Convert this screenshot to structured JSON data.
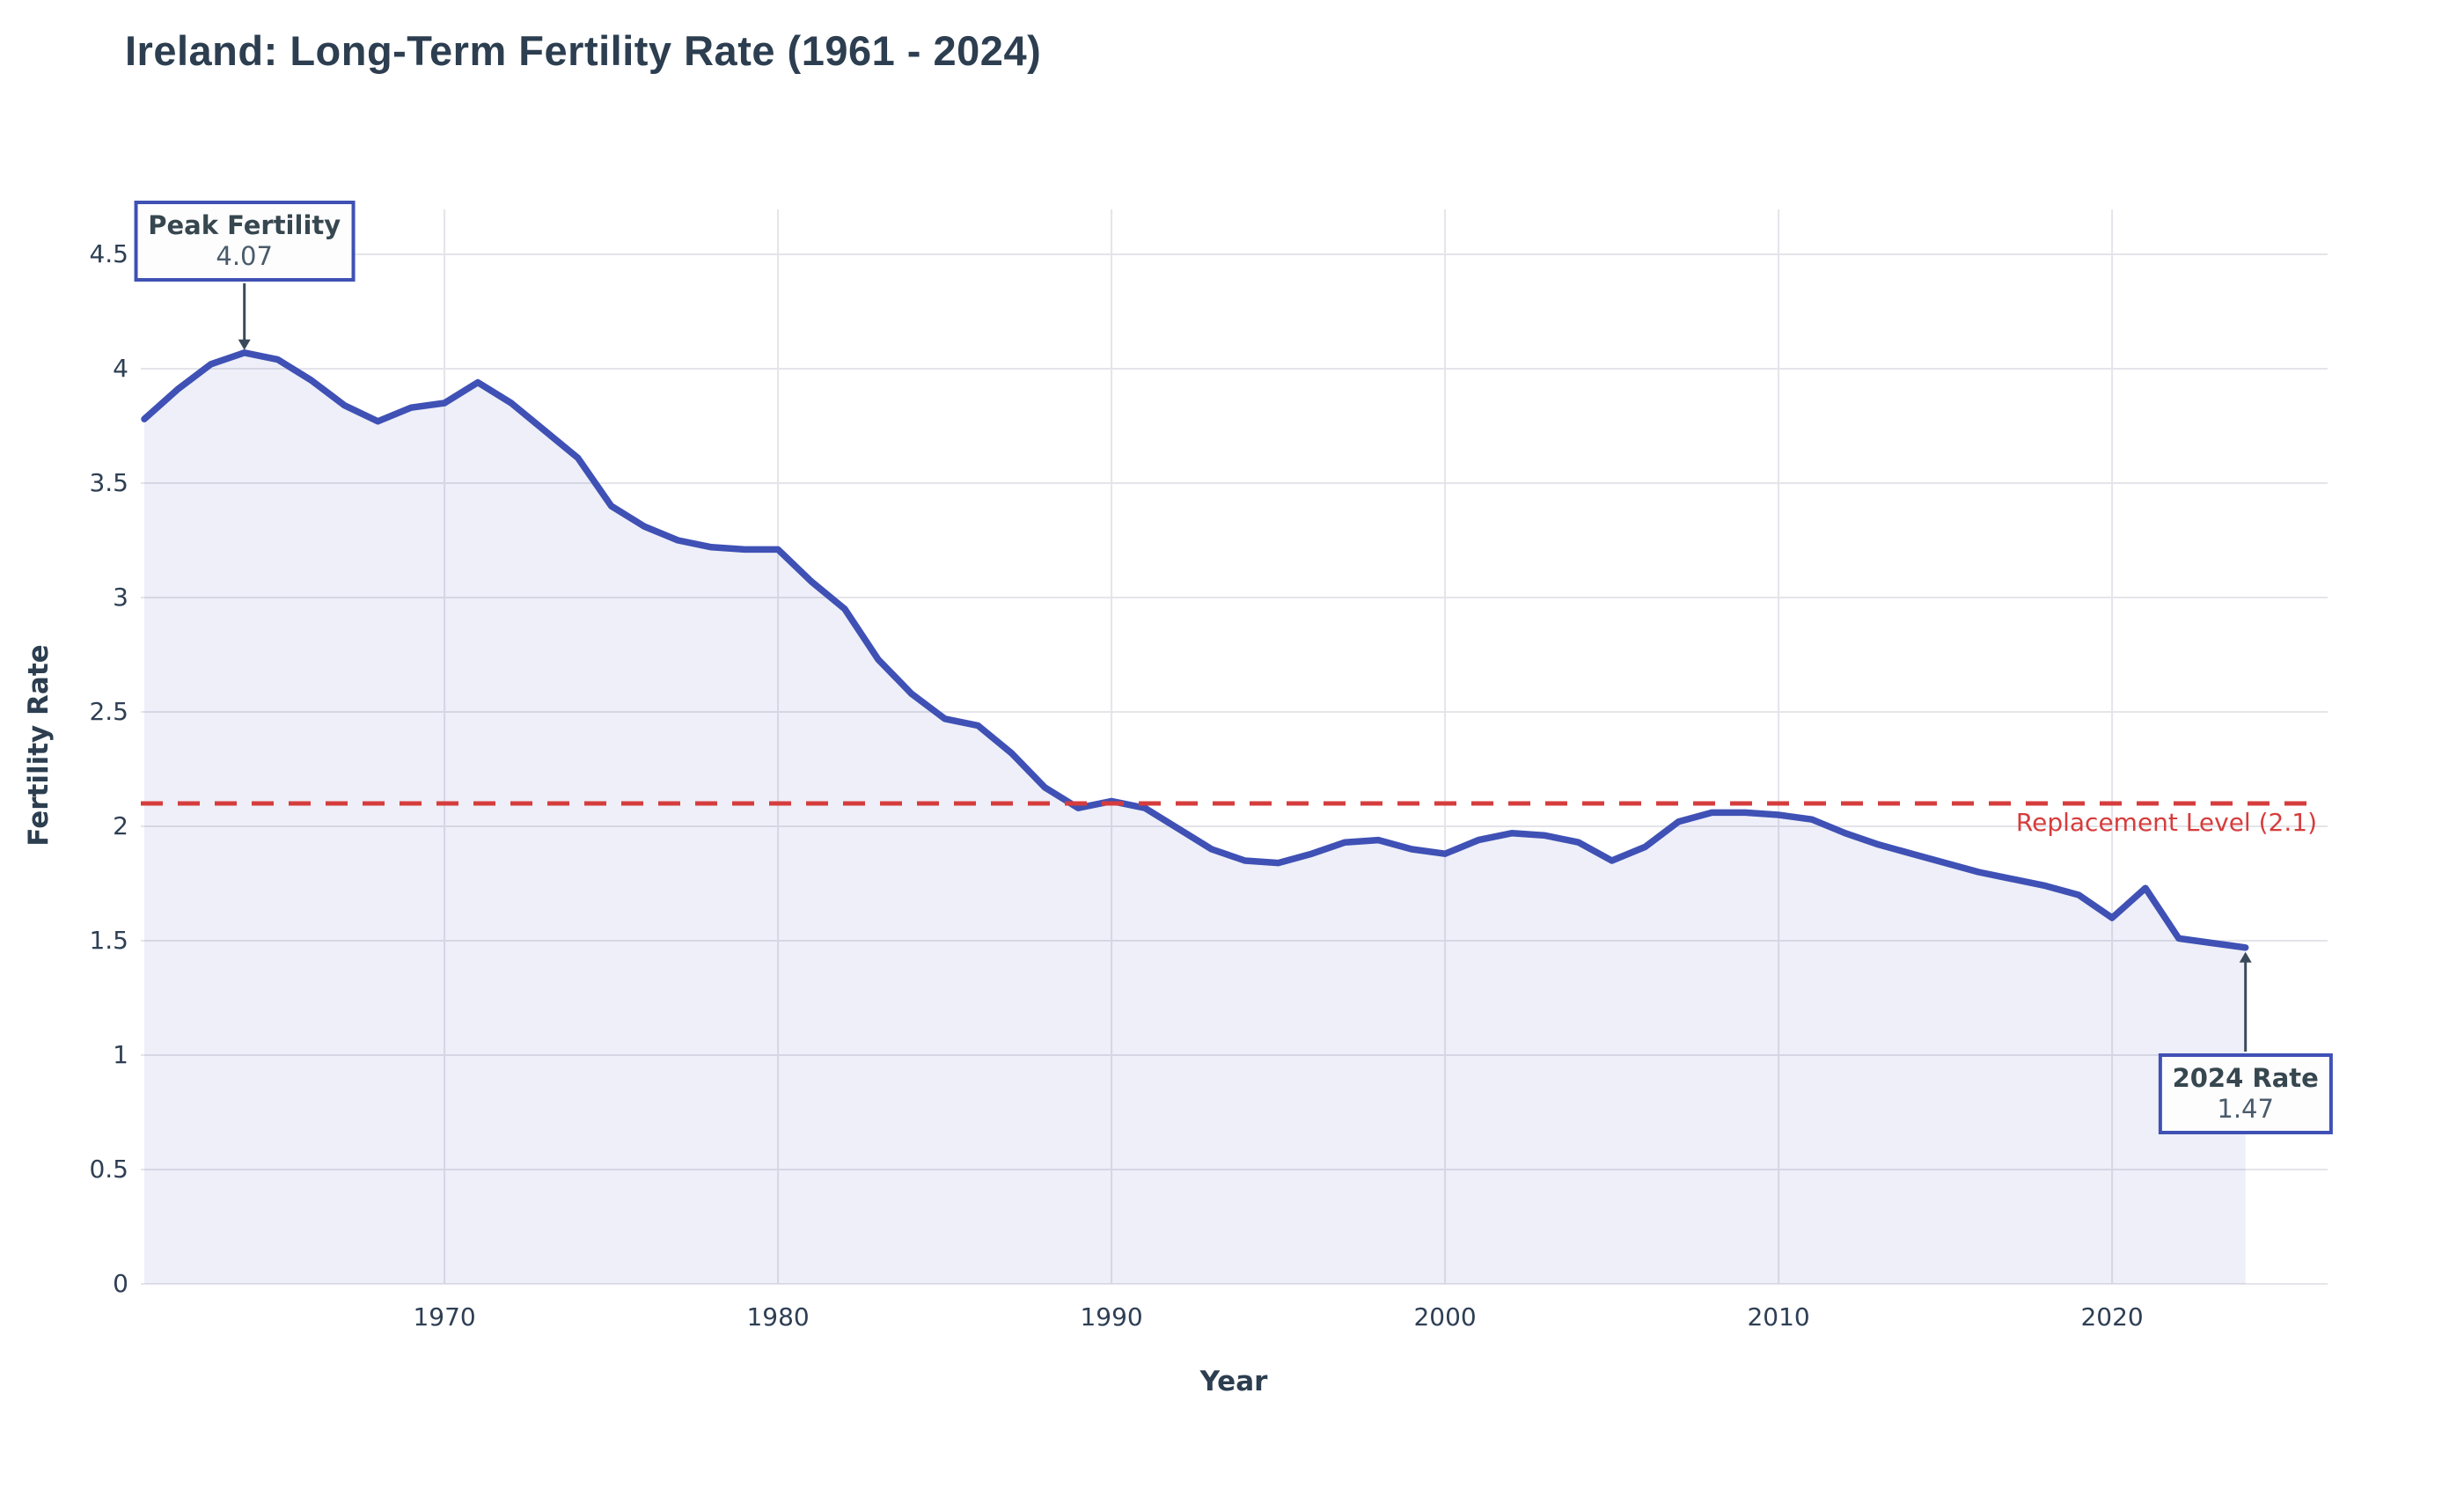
{
  "title": "Ireland: Long-Term Fertility Rate (1961 - 2024)",
  "colors": {
    "line": "#3f51b5",
    "area_fill": "rgba(63,81,181,0.09)",
    "replacement_red": "#d63c3c",
    "grid": "#e4e4ea",
    "title_text": "#2c3e50",
    "tick_text": "#2e3f54",
    "arrow": "#3b4a5a",
    "annotation_border": "#3f51b5",
    "background": "#ffffff"
  },
  "chart_data": {
    "type": "area",
    "title": "Ireland: Long-Term Fertility Rate (1961 - 2024)",
    "xlabel": "Year",
    "ylabel": "Fertility Rate",
    "grid": true,
    "xlim": [
      1961,
      2026.5
    ],
    "ylim": [
      0,
      4.7
    ],
    "xticks": [
      1970,
      1980,
      1990,
      2000,
      2010,
      2020
    ],
    "xtick_labels": [
      "1970",
      "1980",
      "1990",
      "2000",
      "2010",
      "2020"
    ],
    "yticks": [
      0,
      0.5,
      1,
      1.5,
      2,
      2.5,
      3,
      3.5,
      4,
      4.5
    ],
    "ytick_labels": [
      "0",
      "0.5",
      "1",
      "1.5",
      "2",
      "2.5",
      "3",
      "3.5",
      "4",
      "4.5"
    ],
    "x": [
      1961,
      1962,
      1963,
      1964,
      1965,
      1966,
      1967,
      1968,
      1969,
      1970,
      1971,
      1972,
      1973,
      1974,
      1975,
      1976,
      1977,
      1978,
      1979,
      1980,
      1981,
      1982,
      1983,
      1984,
      1985,
      1986,
      1987,
      1988,
      1989,
      1990,
      1991,
      1992,
      1993,
      1994,
      1995,
      1996,
      1997,
      1998,
      1999,
      2000,
      2001,
      2002,
      2003,
      2004,
      2005,
      2006,
      2007,
      2008,
      2009,
      2010,
      2011,
      2012,
      2013,
      2014,
      2015,
      2016,
      2017,
      2018,
      2019,
      2020,
      2021,
      2022,
      2023,
      2024
    ],
    "series": [
      {
        "name": "Fertility Rate",
        "values": [
          3.78,
          3.91,
          4.02,
          4.07,
          4.04,
          3.95,
          3.84,
          3.77,
          3.83,
          3.85,
          3.94,
          3.85,
          3.73,
          3.61,
          3.4,
          3.31,
          3.25,
          3.22,
          3.21,
          3.21,
          3.07,
          2.95,
          2.73,
          2.58,
          2.47,
          2.44,
          2.32,
          2.17,
          2.08,
          2.11,
          2.08,
          1.99,
          1.9,
          1.85,
          1.84,
          1.88,
          1.93,
          1.94,
          1.9,
          1.88,
          1.94,
          1.97,
          1.96,
          1.93,
          1.85,
          1.91,
          2.02,
          2.06,
          2.06,
          2.05,
          2.03,
          1.97,
          1.92,
          1.88,
          1.84,
          1.8,
          1.77,
          1.74,
          1.7,
          1.6,
          1.73,
          1.51,
          1.49,
          1.47
        ]
      }
    ],
    "reference_line": {
      "value": 2.1,
      "label": "Replacement Level (2.1)"
    },
    "annotations": [
      {
        "label": "Peak Fertility",
        "value_text": "4.07",
        "year": 1964,
        "value": 4.07,
        "position": "above"
      },
      {
        "label": "2024 Rate",
        "value_text": "1.47",
        "year": 2024,
        "value": 1.47,
        "position": "below"
      }
    ]
  }
}
